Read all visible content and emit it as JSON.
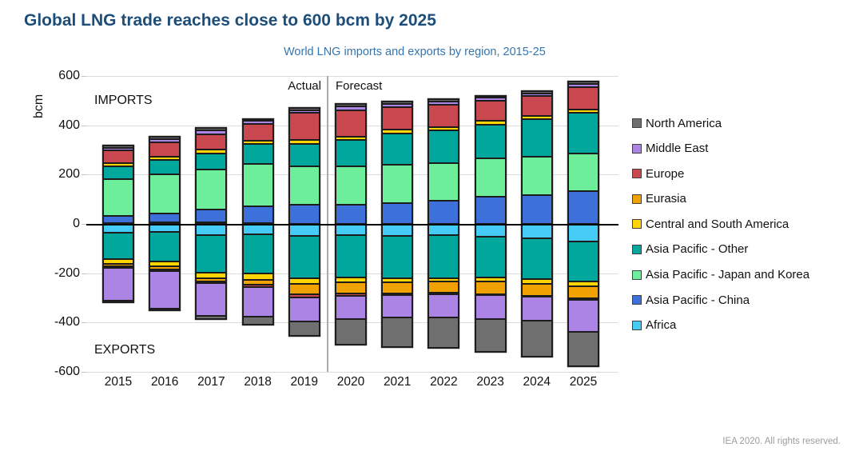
{
  "header": {
    "title": "Global LNG trade reaches close to 600 bcm by 2025",
    "subtitle": "World LNG imports and exports by region, 2015-25"
  },
  "footer": {
    "credit": "IEA 2020. All rights reserved."
  },
  "colors": {
    "title": "#1d4e79",
    "subtitle": "#3575af",
    "gridline": "#dcdcdc",
    "zero_line": "#000000",
    "divider": "#ababab"
  },
  "chart_data": {
    "type": "bar",
    "stacked": true,
    "title": "Global LNG trade reaches close to 600 bcm by 2025",
    "subtitle": "World LNG imports and exports by region, 2015-25",
    "ylabel": "bcm",
    "xlabel": "",
    "ylim": [
      -600,
      600
    ],
    "yticks": [
      600,
      400,
      200,
      0,
      -200,
      -400,
      -600
    ],
    "grid": true,
    "legend_position": "right",
    "categories": [
      "2015",
      "2016",
      "2017",
      "2018",
      "2019",
      "2020",
      "2021",
      "2022",
      "2023",
      "2024",
      "2025"
    ],
    "annotations": {
      "imports_label": "IMPORTS",
      "exports_label": "EXPORTS",
      "actual_label": "Actual",
      "forecast_label": "Forecast",
      "divider_between": [
        "2019",
        "2020"
      ]
    },
    "units": "bcm",
    "series": [
      {
        "name": "North America",
        "color": "#6f6f6f",
        "imports": [
          9,
          9,
          9,
          8,
          8,
          8,
          7,
          9,
          8,
          7,
          8
        ],
        "exports": [
          5,
          7,
          13,
          34,
          58,
          105,
          120,
          122,
          133,
          143,
          140
        ]
      },
      {
        "name": "Middle East",
        "color": "#ab84e6",
        "imports": [
          10,
          13,
          15,
          13,
          10,
          15,
          15,
          13,
          11,
          11,
          13
        ],
        "exports": [
          135,
          151,
          131,
          120,
          100,
          94,
          92,
          95,
          95,
          98,
          128
        ]
      },
      {
        "name": "Europe",
        "color": "#c9484f",
        "imports": [
          50,
          57,
          62,
          66,
          113,
          108,
          90,
          91,
          83,
          82,
          91
        ],
        "exports": [
          6,
          8,
          8,
          8,
          10,
          10,
          5,
          5,
          5,
          5,
          8
        ]
      },
      {
        "name": "Eurasia",
        "color": "#f0a202",
        "imports": [
          0,
          0,
          0,
          0,
          0,
          0,
          0,
          0,
          0,
          0,
          0
        ],
        "exports": [
          10,
          13,
          13,
          21,
          44,
          44,
          47,
          45,
          51,
          47,
          47
        ]
      },
      {
        "name": "Central and South America",
        "color": "#fed402",
        "imports": [
          15,
          13,
          16,
          13,
          14,
          13,
          15,
          14,
          15,
          11,
          14
        ],
        "exports": [
          17,
          19,
          21,
          26,
          21,
          21,
          16,
          16,
          16,
          21,
          19
        ]
      },
      {
        "name": "Asia Pacific - Other",
        "color": "#00a79d",
        "imports": [
          50,
          61,
          65,
          82,
          93,
          108,
          128,
          131,
          138,
          155,
          165
        ],
        "exports": [
          108,
          118,
          152,
          160,
          172,
          170,
          172,
          174,
          166,
          166,
          165
        ]
      },
      {
        "name": "Asia Pacific - Japan and Korea",
        "color": "#6cee9a",
        "imports": [
          152,
          157,
          163,
          173,
          154,
          156,
          157,
          152,
          154,
          153,
          154
        ],
        "exports": [
          0,
          0,
          0,
          0,
          0,
          0,
          0,
          0,
          0,
          0,
          0
        ]
      },
      {
        "name": "Asia Pacific - China",
        "color": "#3d71d9",
        "imports": [
          27,
          35,
          52,
          67,
          78,
          77,
          83,
          95,
          111,
          118,
          132
        ],
        "exports": [
          0,
          0,
          0,
          0,
          0,
          0,
          0,
          0,
          0,
          0,
          0
        ]
      },
      {
        "name": "Africa",
        "color": "#45cbf5",
        "imports": [
          4,
          8,
          6,
          3,
          0,
          0,
          0,
          0,
          0,
          0,
          0
        ],
        "exports": [
          36,
          34,
          47,
          41,
          50,
          47,
          48,
          45,
          52,
          57,
          70
        ]
      }
    ]
  }
}
